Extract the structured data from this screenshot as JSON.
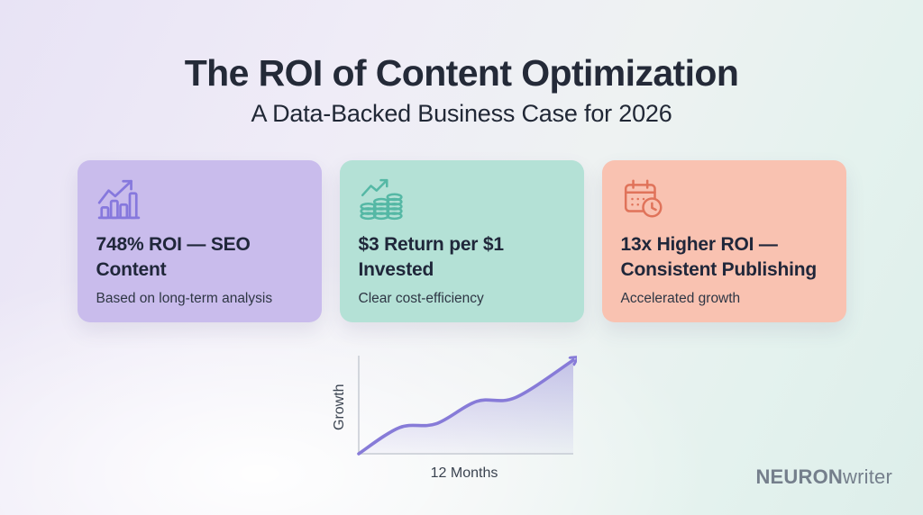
{
  "page": {
    "title": "The ROI of Content Optimization",
    "subtitle": "A Data-Backed Business Case for 2026"
  },
  "cards": [
    {
      "icon": "bar-chart-growth-icon",
      "title": "748% ROI — SEO Content",
      "subtitle": "Based on long-term analysis",
      "bg_color": "#c9bcec",
      "accent_color": "#8678dd"
    },
    {
      "icon": "coins-growth-icon",
      "title": "$3 Return per $1 Invested",
      "subtitle": "Clear cost-efficiency",
      "bg_color": "#b4e1d6",
      "accent_color": "#55b8a5"
    },
    {
      "icon": "calendar-clock-icon",
      "title": "13x Higher ROI — Consistent Publishing",
      "subtitle": "Accelerated growth",
      "bg_color": "#f9c2b1",
      "accent_color": "#e0735a"
    }
  ],
  "chart_data": {
    "type": "line",
    "title": "",
    "xlabel": "12 Months",
    "ylabel": "Growth",
    "x_tick_labels": [],
    "y_tick_labels": [],
    "x_norm": [
      0,
      19,
      36,
      55,
      73,
      100
    ],
    "y_norm": [
      0,
      28,
      32,
      56,
      60,
      100
    ],
    "xlim_note": "axes unlabeled – stylized stepped growth curve over 12 months",
    "line_color": "#877bd8",
    "area_fill_color": "#8a7ed8",
    "axis_color": "#c6cbd3",
    "arrow_end": true,
    "grid": false,
    "legend": "none"
  },
  "brand": {
    "bold": "NEURON",
    "regular": "writer"
  },
  "colors": {
    "background_left": "#e8e3f5",
    "background_right": "#ddeeea",
    "title_text": "#242a38",
    "brand_text": "#757f8c"
  }
}
